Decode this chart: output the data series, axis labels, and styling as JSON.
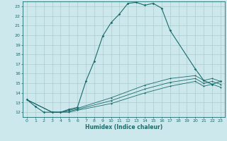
{
  "xlabel": "Humidex (Indice chaleur)",
  "ylabel": "",
  "background_color": "#cce8ec",
  "grid_color": "#aacccc",
  "line_color": "#1a6b6b",
  "xlim": [
    -0.5,
    23.5
  ],
  "ylim": [
    11.5,
    23.5
  ],
  "yticks": [
    12,
    13,
    14,
    15,
    16,
    17,
    18,
    19,
    20,
    21,
    22,
    23
  ],
  "xticks": [
    0,
    1,
    2,
    3,
    4,
    5,
    6,
    7,
    8,
    9,
    10,
    11,
    12,
    13,
    14,
    15,
    16,
    17,
    18,
    19,
    20,
    21,
    22,
    23
  ],
  "series": [
    {
      "x": [
        0,
        1,
        2,
        3,
        4,
        5,
        6,
        7,
        8,
        9,
        10,
        11,
        12,
        13,
        14,
        15,
        16,
        17,
        20,
        21,
        22,
        23
      ],
      "y": [
        13.3,
        12.6,
        12.0,
        12.0,
        12.0,
        12.3,
        12.5,
        15.2,
        17.3,
        19.9,
        21.3,
        22.2,
        23.3,
        23.4,
        23.1,
        23.3,
        22.8,
        20.5,
        16.5,
        15.3,
        14.9,
        15.2
      ]
    },
    {
      "x": [
        0,
        3,
        4,
        5,
        6,
        10,
        14,
        17,
        20,
        21,
        22,
        23
      ],
      "y": [
        13.3,
        12.0,
        12.0,
        12.2,
        12.4,
        13.5,
        14.8,
        15.5,
        15.8,
        15.3,
        15.5,
        15.2
      ]
    },
    {
      "x": [
        0,
        3,
        4,
        5,
        6,
        10,
        14,
        17,
        20,
        21,
        22,
        23
      ],
      "y": [
        13.3,
        12.0,
        12.0,
        12.1,
        12.3,
        13.2,
        14.4,
        15.1,
        15.5,
        15.0,
        15.2,
        14.9
      ]
    },
    {
      "x": [
        0,
        3,
        4,
        5,
        6,
        10,
        14,
        17,
        20,
        21,
        22,
        23
      ],
      "y": [
        13.3,
        12.0,
        12.0,
        12.0,
        12.2,
        12.9,
        14.0,
        14.7,
        15.2,
        14.7,
        14.9,
        14.6
      ]
    }
  ]
}
